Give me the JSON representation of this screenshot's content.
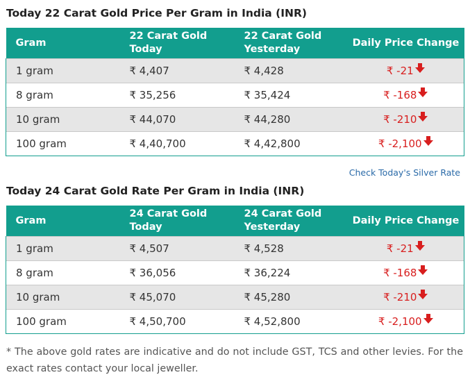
{
  "table22": {
    "title": "Today 22 Carat Gold Price Per Gram in India (INR)",
    "headers": [
      "Gram",
      "22 Carat Gold Today",
      "22 Carat Gold Yesterday",
      "Daily Price Change"
    ],
    "rows": [
      {
        "gram": "1 gram",
        "today": "₹ 4,407",
        "yesterday": "₹ 4,428",
        "change": "₹ -21"
      },
      {
        "gram": "8 gram",
        "today": "₹ 35,256",
        "yesterday": "₹ 35,424",
        "change": "₹ -168"
      },
      {
        "gram": "10 gram",
        "today": "₹ 44,070",
        "yesterday": "₹ 44,280",
        "change": "₹ -210"
      },
      {
        "gram": "100 gram",
        "today": "₹ 4,40,700",
        "yesterday": "₹ 4,42,800",
        "change": "₹ -2,100"
      }
    ]
  },
  "silver_link": "Check Today's Silver Rate",
  "table24": {
    "title": "Today 24 Carat Gold Rate Per Gram in India (INR)",
    "headers": [
      "Gram",
      "24 Carat Gold Today",
      "24 Carat Gold Yesterday",
      "Daily Price Change"
    ],
    "rows": [
      {
        "gram": "1 gram",
        "today": "₹ 4,507",
        "yesterday": "₹ 4,528",
        "change": "₹ -21"
      },
      {
        "gram": "8 gram",
        "today": "₹ 36,056",
        "yesterday": "₹ 36,224",
        "change": "₹ -168"
      },
      {
        "gram": "10 gram",
        "today": "₹ 45,070",
        "yesterday": "₹ 45,280",
        "change": "₹ -210"
      },
      {
        "gram": "100 gram",
        "today": "₹ 4,50,700",
        "yesterday": "₹ 4,52,800",
        "change": "₹ -2,100"
      }
    ]
  },
  "note": "* The above gold rates are indicative and do not include GST, TCS and other levies. For the exact rates contact your local jeweller.",
  "colors": {
    "header": "#129e8e",
    "decrease": "#d81e1e",
    "link": "#2a6aa8",
    "alt_row": "#e6e6e6"
  },
  "icons": {
    "decrease": "down-arrow-icon"
  }
}
